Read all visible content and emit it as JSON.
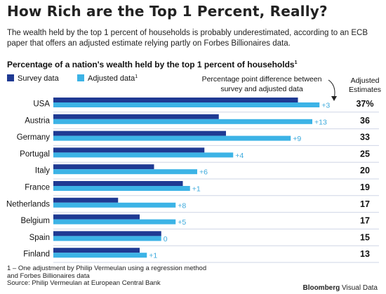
{
  "header": {
    "title": "How Rich are the Top 1 Percent, Really?",
    "subtitle": "The wealth held by the top 1 percent of households is probably underestimated, according to an ECB paper that offers an adjusted estimate relying partly on Forbes Billionaires data."
  },
  "colors": {
    "survey": "#1f3a93",
    "adjusted": "#3cb3e6",
    "gridline": "#cfd6e6",
    "diff_text": "#3aa9dc"
  },
  "chart_data": {
    "type": "bar",
    "orientation": "horizontal",
    "title": "Percentage of a nation's wealth held by the top 1 percent of households",
    "title_footnote_mark": "1",
    "annotation": "Percentage point difference between survey and adjusted data",
    "estimates_header": "Adjusted Estimates",
    "categories": [
      "USA",
      "Austria",
      "Germany",
      "Portugal",
      "Italy",
      "France",
      "Netherlands",
      "Belgium",
      "Spain",
      "Finland"
    ],
    "series": [
      {
        "name": "Survey data",
        "values": [
          34,
          23,
          24,
          21,
          14,
          18,
          9,
          12,
          15,
          12
        ]
      },
      {
        "name": "Adjusted data",
        "name_footnote_mark": "1",
        "values": [
          37,
          36,
          33,
          25,
          20,
          19,
          17,
          17,
          15,
          13
        ]
      }
    ],
    "differences": [
      "+3",
      "+13",
      "+9",
      "+4",
      "+6",
      "+1",
      "+8",
      "+5",
      "0",
      "+1"
    ],
    "adjusted_estimates": [
      "37%",
      "36",
      "33",
      "25",
      "20",
      "19",
      "17",
      "17",
      "15",
      "13"
    ],
    "xlim": [
      0,
      40
    ],
    "legend_position": "top-left"
  },
  "footer": {
    "footnote": "1 – One adjustment by Philip Vermeulan using a regression method and Forbes Billionaires data",
    "source": "Source: Philip Vermeulan at European Central Bank",
    "brand_bold": "Bloomberg",
    "brand_regular": " Visual Data"
  }
}
